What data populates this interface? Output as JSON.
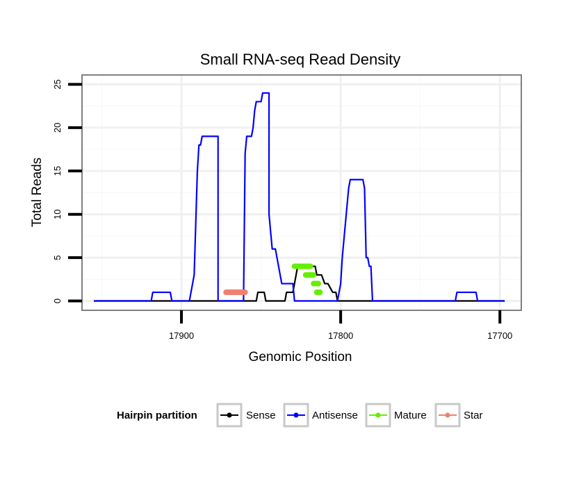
{
  "chart_data": {
    "type": "line",
    "title": "Small RNA-seq Read Density",
    "xlabel": "Genomic Position",
    "ylabel": "Total Reads",
    "x_reversed": true,
    "xlim": [
      17962,
      17687
    ],
    "ylim": [
      -1.0,
      26.0
    ],
    "x_ticks": [
      17900,
      17800,
      17700
    ],
    "x_tick_labels": [
      "17900",
      "17800",
      "17700"
    ],
    "y_ticks": [
      0,
      5,
      10,
      15,
      20,
      25
    ],
    "y_tick_labels": [
      "0",
      "5",
      "10",
      "15",
      "20",
      "25"
    ],
    "grid": true,
    "legend_position": "bottom",
    "legend_title": "Hairpin partition",
    "legend": [
      {
        "name": "Sense",
        "color": "#000000"
      },
      {
        "name": "Antisense",
        "color": "#0000ff"
      },
      {
        "name": "Mature",
        "color": "#66ee00"
      },
      {
        "name": "Star",
        "color": "#f08070"
      }
    ],
    "series": [
      {
        "name": "Sense",
        "color": "#000000",
        "style": "line",
        "points": [
          [
            17955,
            0
          ],
          [
            17853,
            0
          ],
          [
            17852,
            1
          ],
          [
            17848,
            1
          ],
          [
            17847,
            0
          ],
          [
            17835,
            0
          ],
          [
            17834,
            1
          ],
          [
            17830,
            1
          ],
          [
            17829,
            2
          ],
          [
            17827,
            4
          ],
          [
            17816,
            4
          ],
          [
            17815,
            3
          ],
          [
            17812,
            3
          ],
          [
            17810,
            2
          ],
          [
            17808,
            2
          ],
          [
            17805,
            1
          ],
          [
            17803,
            1
          ],
          [
            17802,
            0
          ],
          [
            17697,
            0
          ]
        ]
      },
      {
        "name": "Antisense",
        "color": "#0000ff",
        "style": "line",
        "points": [
          [
            17955,
            0
          ],
          [
            17919,
            0
          ],
          [
            17918,
            1
          ],
          [
            17907,
            1
          ],
          [
            17906,
            0
          ],
          [
            17895,
            0
          ],
          [
            17894,
            1
          ],
          [
            17892,
            3
          ],
          [
            17890,
            15
          ],
          [
            17889,
            18
          ],
          [
            17888,
            18
          ],
          [
            17887,
            19
          ],
          [
            17877,
            19
          ],
          [
            17877,
            0
          ],
          [
            17861,
            0
          ],
          [
            17860,
            17
          ],
          [
            17859,
            19
          ],
          [
            17856,
            19
          ],
          [
            17855,
            20
          ],
          [
            17854,
            22
          ],
          [
            17853,
            23
          ],
          [
            17850,
            23
          ],
          [
            17849,
            24
          ],
          [
            17845,
            24
          ],
          [
            17845,
            10
          ],
          [
            17843,
            6
          ],
          [
            17841,
            6
          ],
          [
            17839,
            4
          ],
          [
            17837,
            2
          ],
          [
            17830,
            2
          ],
          [
            17829,
            0
          ],
          [
            17802,
            0
          ],
          [
            17800,
            2
          ],
          [
            17799,
            5
          ],
          [
            17798,
            7
          ],
          [
            17797,
            9
          ],
          [
            17795,
            13
          ],
          [
            17794,
            14
          ],
          [
            17786,
            14
          ],
          [
            17785,
            13
          ],
          [
            17784,
            5
          ],
          [
            17783,
            5
          ],
          [
            17782,
            4
          ],
          [
            17781,
            4
          ],
          [
            17780,
            0
          ],
          [
            17728,
            0
          ],
          [
            17727,
            1
          ],
          [
            17715,
            1
          ],
          [
            17714,
            0
          ],
          [
            17697,
            0
          ]
        ]
      },
      {
        "name": "Mature",
        "color": "#66ee00",
        "style": "segments",
        "segments": [
          {
            "from": 17829,
            "to": 17819,
            "y": 4
          },
          {
            "from": 17822,
            "to": 17817,
            "y": 3
          },
          {
            "from": 17817,
            "to": 17814,
            "y": 2
          },
          {
            "from": 17815,
            "to": 17813,
            "y": 1
          }
        ]
      },
      {
        "name": "Star",
        "color": "#f08070",
        "style": "segments",
        "segments": [
          {
            "from": 17872,
            "to": 17860,
            "y": 1
          }
        ]
      }
    ]
  }
}
